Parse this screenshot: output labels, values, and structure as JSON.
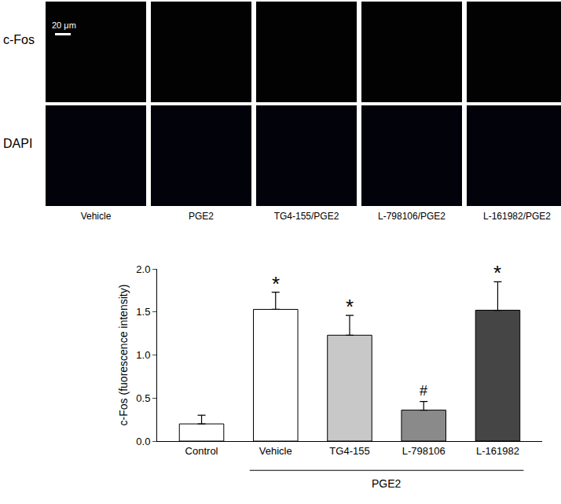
{
  "panels": {
    "rows": [
      "c-Fos",
      "DAPI"
    ],
    "columns": [
      "Vehicle",
      "PGE2",
      "TG4-155/PGE2",
      "L-798106/PGE2",
      "L-161982/PGE2"
    ],
    "scale_bar": "20 μm"
  },
  "chart_data": {
    "type": "bar",
    "y_label": "c-Fos (fuorescence intensity)",
    "categories": [
      "Control",
      "Vehicle",
      "TG4-155",
      "L-798106",
      "L-161982"
    ],
    "values": [
      0.2,
      1.53,
      1.23,
      0.36,
      1.52
    ],
    "error": [
      0.1,
      0.2,
      0.23,
      0.1,
      0.33
    ],
    "colors": [
      "#ffffff",
      "#ffffff",
      "#c8c8c8",
      "#8a8a8a",
      "#454545"
    ],
    "ylim": [
      0,
      2
    ],
    "yticks": [
      {
        "value": 0,
        "label": "0.0"
      },
      {
        "value": 0.5,
        "label": "0.5"
      },
      {
        "value": 1,
        "label": "1.0"
      },
      {
        "value": 1.5,
        "label": "1.5"
      },
      {
        "value": 2,
        "label": "2.0"
      }
    ],
    "grid": false,
    "annotations": [
      {
        "category": "Vehicle",
        "text": "*"
      },
      {
        "category": "TG4-155",
        "text": "*"
      },
      {
        "category": "L-798106",
        "text": "#"
      },
      {
        "category": "L-161982",
        "text": "*"
      }
    ],
    "group_label": {
      "text": "PGE2",
      "categories": [
        "Vehicle",
        "L-161982"
      ]
    }
  }
}
